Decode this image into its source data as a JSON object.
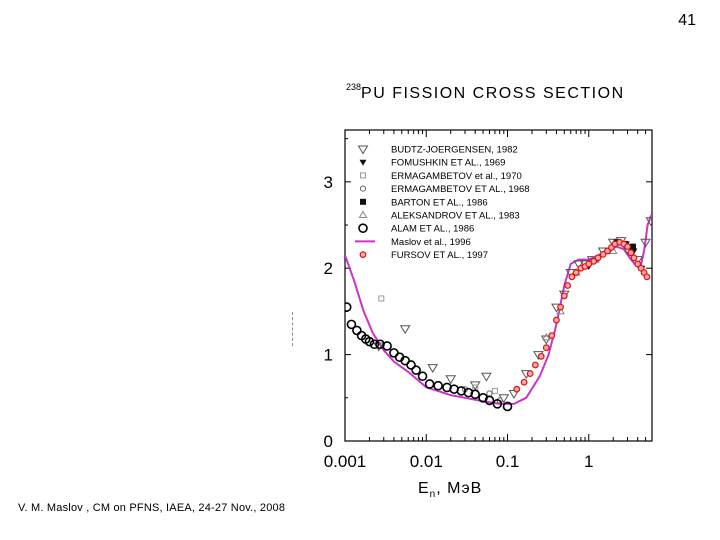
{
  "slide": {
    "number": "41"
  },
  "footer": {
    "text": "V. M. Maslov ,   CM on PFNS, IAEA, 24-27 Nov., 2008"
  },
  "chart_data": {
    "type": "scatter",
    "title": "238PU  FISSION  CROSS  SECTION",
    "title_sup": "238",
    "title_main": "PU  FISSION  CROSS  SECTION",
    "xlabel": "En, MэB",
    "xlabel_main": "E",
    "xlabel_sub": "n",
    "xlabel_unit": ", MэB",
    "ylabel": "",
    "xscale": "log",
    "xlim": [
      0.001,
      6
    ],
    "ylim": [
      0,
      3.6
    ],
    "xticks": [
      0.001,
      0.01,
      0.1,
      1
    ],
    "xtick_labels": [
      "0.001",
      "0.01",
      "0.1",
      "1"
    ],
    "yticks": [
      0,
      1,
      2,
      3
    ],
    "ytick_labels": [
      "0",
      "1",
      "2",
      "3"
    ],
    "legend_position": "top-left",
    "series": [
      {
        "name": "BUDTZ-JOERGENSEN, 1982",
        "marker": "triangle-down-open",
        "color": "#555555",
        "points": [
          [
            0.0026,
            1.1
          ],
          [
            0.0055,
            1.3
          ],
          [
            0.012,
            0.85
          ],
          [
            0.02,
            0.72
          ],
          [
            0.04,
            0.65
          ],
          [
            0.055,
            0.75
          ],
          [
            0.09,
            0.5
          ],
          [
            0.12,
            0.55
          ],
          [
            0.17,
            0.78
          ],
          [
            0.24,
            1.0
          ],
          [
            0.3,
            1.18
          ],
          [
            0.4,
            1.55
          ],
          [
            0.5,
            1.7
          ],
          [
            0.6,
            1.95
          ],
          [
            0.75,
            2.05
          ],
          [
            0.9,
            2.05
          ],
          [
            1.1,
            2.1
          ],
          [
            1.5,
            2.2
          ],
          [
            2.0,
            2.3
          ],
          [
            2.5,
            2.32
          ],
          [
            3.0,
            2.22
          ],
          [
            4.0,
            2.1
          ],
          [
            5.0,
            2.3
          ],
          [
            5.8,
            2.55
          ]
        ]
      },
      {
        "name": "FOMUSHKIN ET AL., 1969",
        "marker": "triangle-down-filled",
        "color": "#111111",
        "points": [
          [
            1.0,
            2.02
          ],
          [
            1.3,
            2.1
          ],
          [
            1.8,
            2.2
          ],
          [
            2.3,
            2.3
          ],
          [
            2.9,
            2.28
          ],
          [
            3.6,
            2.2
          ],
          [
            4.5,
            2.0
          ]
        ]
      },
      {
        "name": "ERMAGAMBETOV et al., 1970",
        "marker": "square-open-small",
        "color": "#999999",
        "points": [
          [
            0.0028,
            1.65
          ],
          [
            0.04,
            0.62
          ],
          [
            0.07,
            0.58
          ]
        ]
      },
      {
        "name": "ERMAGAMBETOV ET AL., 1968",
        "marker": "circle-open-small",
        "color": "#666666",
        "points": [
          [
            0.03,
            0.6
          ],
          [
            0.06,
            0.55
          ],
          [
            0.08,
            0.47
          ]
        ]
      },
      {
        "name": "BARTON  ET AL., 1986",
        "marker": "square-filled",
        "color": "#111111",
        "points": [
          [
            2.2,
            2.3
          ],
          [
            2.8,
            2.28
          ],
          [
            3.5,
            2.25
          ]
        ]
      },
      {
        "name": "ALEKSANDROV ET AL., 1983",
        "marker": "triangle-up-open",
        "color": "#888888",
        "points": [
          [
            0.3,
            1.2
          ],
          [
            0.45,
            1.5
          ],
          [
            0.7,
            1.95
          ],
          [
            1.2,
            2.1
          ],
          [
            2.0,
            2.2
          ]
        ]
      },
      {
        "name": "ALAM  ET AL., 1986",
        "marker": "circle-open-large",
        "color": "#000000",
        "points": [
          [
            0.00105,
            1.55
          ],
          [
            0.0012,
            1.35
          ],
          [
            0.0014,
            1.28
          ],
          [
            0.0016,
            1.22
          ],
          [
            0.0018,
            1.18
          ],
          [
            0.002,
            1.15
          ],
          [
            0.0023,
            1.12
          ],
          [
            0.0027,
            1.12
          ],
          [
            0.0033,
            1.1
          ],
          [
            0.004,
            1.02
          ],
          [
            0.0047,
            0.97
          ],
          [
            0.0055,
            0.93
          ],
          [
            0.0065,
            0.88
          ],
          [
            0.0075,
            0.82
          ],
          [
            0.009,
            0.75
          ],
          [
            0.011,
            0.66
          ],
          [
            0.014,
            0.64
          ],
          [
            0.018,
            0.62
          ],
          [
            0.022,
            0.6
          ],
          [
            0.027,
            0.58
          ],
          [
            0.033,
            0.56
          ],
          [
            0.04,
            0.54
          ],
          [
            0.05,
            0.5
          ],
          [
            0.06,
            0.47
          ],
          [
            0.075,
            0.43
          ],
          [
            0.1,
            0.4
          ]
        ]
      },
      {
        "name": "Maslov et al., 1996",
        "marker": "line",
        "color": "#cc33cc",
        "points": [
          [
            0.001,
            2.15
          ],
          [
            0.0013,
            1.85
          ],
          [
            0.0017,
            1.5
          ],
          [
            0.0022,
            1.25
          ],
          [
            0.003,
            1.05
          ],
          [
            0.004,
            0.92
          ],
          [
            0.006,
            0.8
          ],
          [
            0.008,
            0.7
          ],
          [
            0.01,
            0.62
          ],
          [
            0.015,
            0.57
          ],
          [
            0.02,
            0.53
          ],
          [
            0.03,
            0.5
          ],
          [
            0.05,
            0.46
          ],
          [
            0.08,
            0.43
          ],
          [
            0.12,
            0.43
          ],
          [
            0.17,
            0.5
          ],
          [
            0.25,
            0.75
          ],
          [
            0.32,
            1.0
          ],
          [
            0.4,
            1.35
          ],
          [
            0.5,
            1.8
          ],
          [
            0.6,
            2.05
          ],
          [
            0.75,
            2.1
          ],
          [
            1.0,
            2.1
          ],
          [
            1.3,
            2.15
          ],
          [
            1.7,
            2.2
          ],
          [
            2.2,
            2.25
          ],
          [
            2.7,
            2.22
          ],
          [
            3.2,
            2.12
          ],
          [
            3.8,
            2.03
          ],
          [
            4.3,
            2.0
          ],
          [
            4.8,
            2.2
          ],
          [
            5.3,
            2.5
          ],
          [
            5.8,
            2.6
          ],
          [
            6.0,
            2.62
          ]
        ]
      },
      {
        "name": "FURSOV ET AL., 1997",
        "marker": "circle-red",
        "color": "#dd1111",
        "points": [
          [
            0.13,
            0.6
          ],
          [
            0.16,
            0.68
          ],
          [
            0.19,
            0.78
          ],
          [
            0.22,
            0.88
          ],
          [
            0.26,
            0.98
          ],
          [
            0.3,
            1.08
          ],
          [
            0.35,
            1.22
          ],
          [
            0.4,
            1.4
          ],
          [
            0.45,
            1.55
          ],
          [
            0.5,
            1.68
          ],
          [
            0.55,
            1.8
          ],
          [
            0.62,
            1.9
          ],
          [
            0.7,
            1.95
          ],
          [
            0.8,
            2.0
          ],
          [
            0.9,
            2.02
          ],
          [
            1.0,
            2.05
          ],
          [
            1.15,
            2.08
          ],
          [
            1.3,
            2.12
          ],
          [
            1.5,
            2.16
          ],
          [
            1.7,
            2.2
          ],
          [
            1.9,
            2.24
          ],
          [
            2.1,
            2.28
          ],
          [
            2.4,
            2.3
          ],
          [
            2.7,
            2.28
          ],
          [
            3.0,
            2.25
          ],
          [
            3.3,
            2.18
          ],
          [
            3.6,
            2.12
          ],
          [
            4.0,
            2.05
          ],
          [
            4.4,
            2.0
          ],
          [
            4.8,
            1.95
          ],
          [
            5.2,
            1.9
          ]
        ]
      }
    ]
  }
}
